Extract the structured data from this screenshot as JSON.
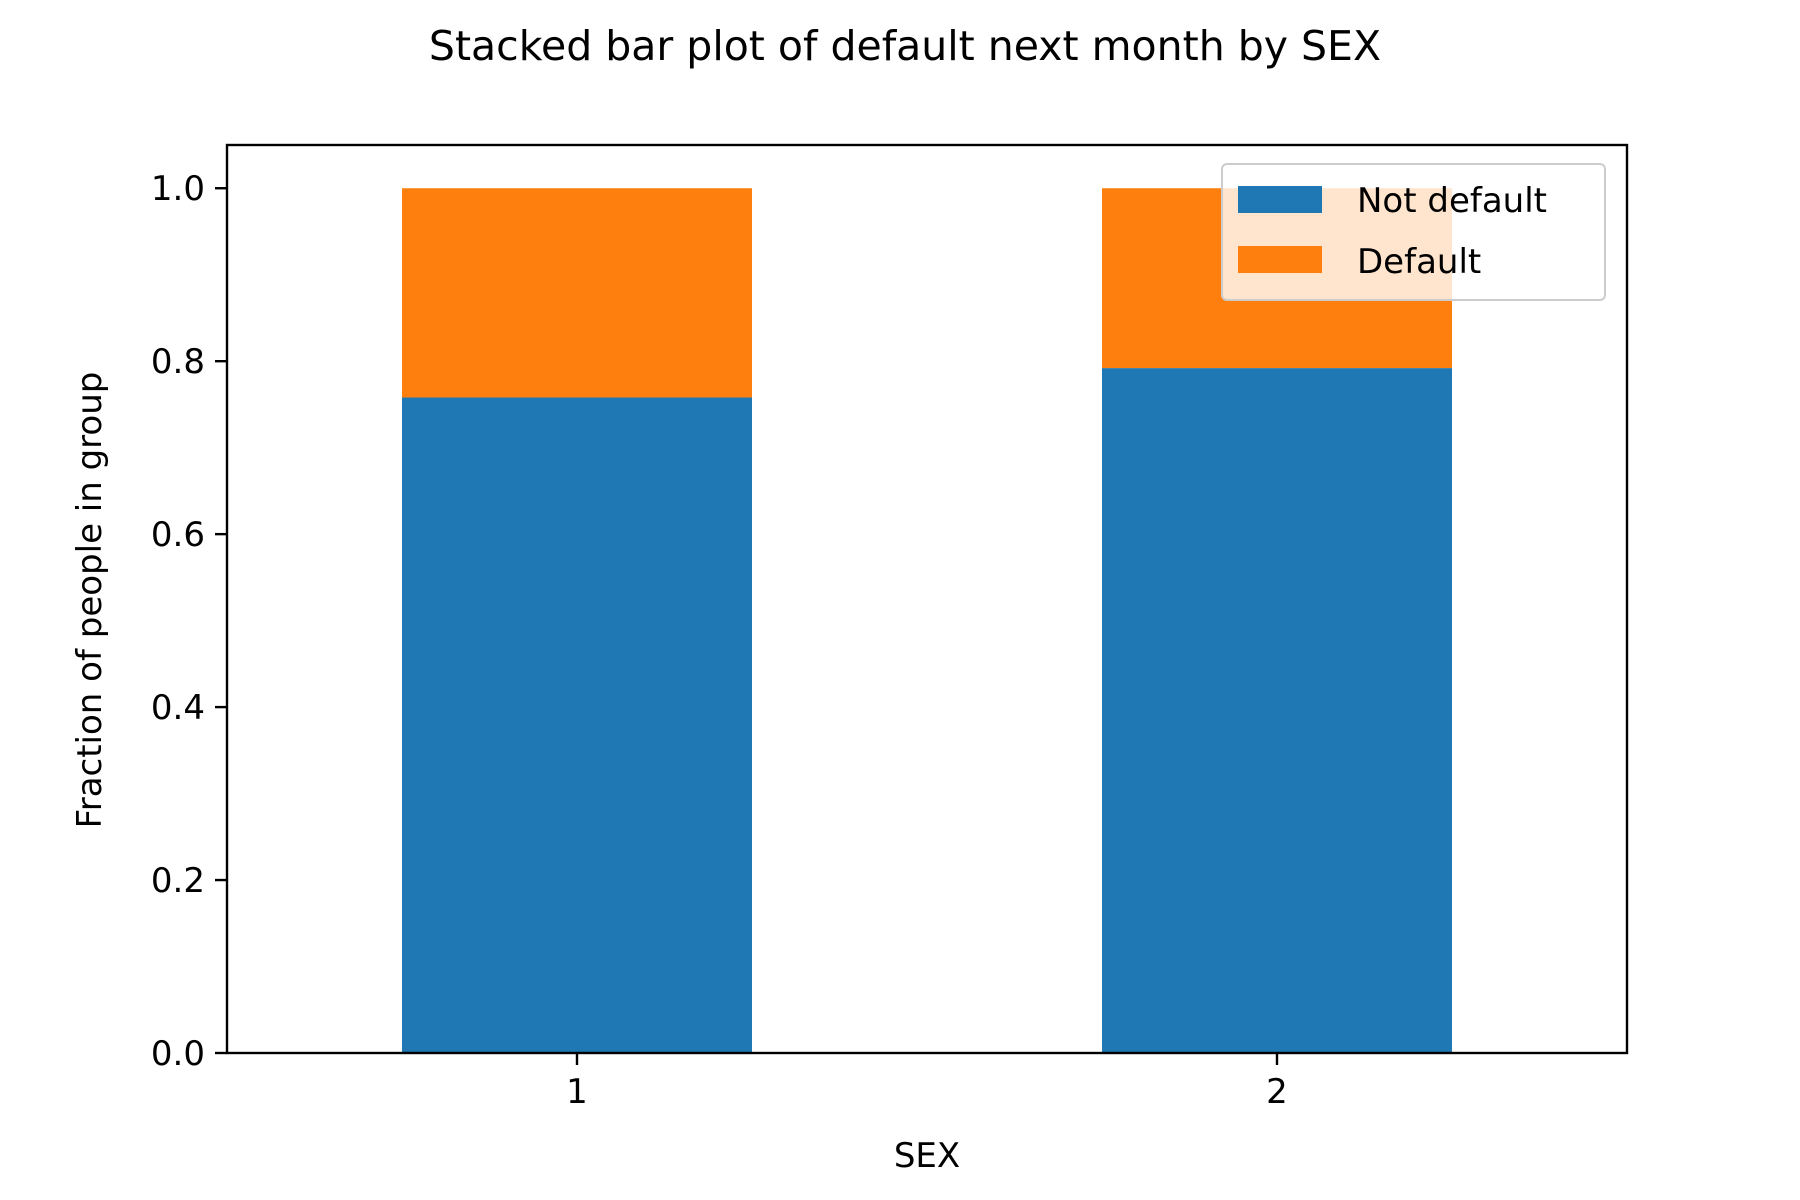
{
  "chart_data": {
    "type": "bar",
    "stacked": true,
    "title": "Stacked bar plot of default next month by SEX",
    "xlabel": "SEX",
    "ylabel": "Fraction of people in group",
    "categories": [
      "1",
      "2"
    ],
    "series": [
      {
        "name": "Not default",
        "color": "#1f77b4",
        "values": [
          0.758,
          0.792
        ]
      },
      {
        "name": "Default",
        "color": "#ff7f0e",
        "values": [
          0.242,
          0.208
        ]
      }
    ],
    "ylim": [
      0,
      1.05
    ],
    "yticks": [
      "0.0",
      "0.2",
      "0.4",
      "0.6",
      "0.8",
      "1.0"
    ],
    "ytick_values": [
      0,
      0.2,
      0.4,
      0.6,
      0.8,
      1.0
    ],
    "grid": false,
    "legend_position": "top-right"
  }
}
